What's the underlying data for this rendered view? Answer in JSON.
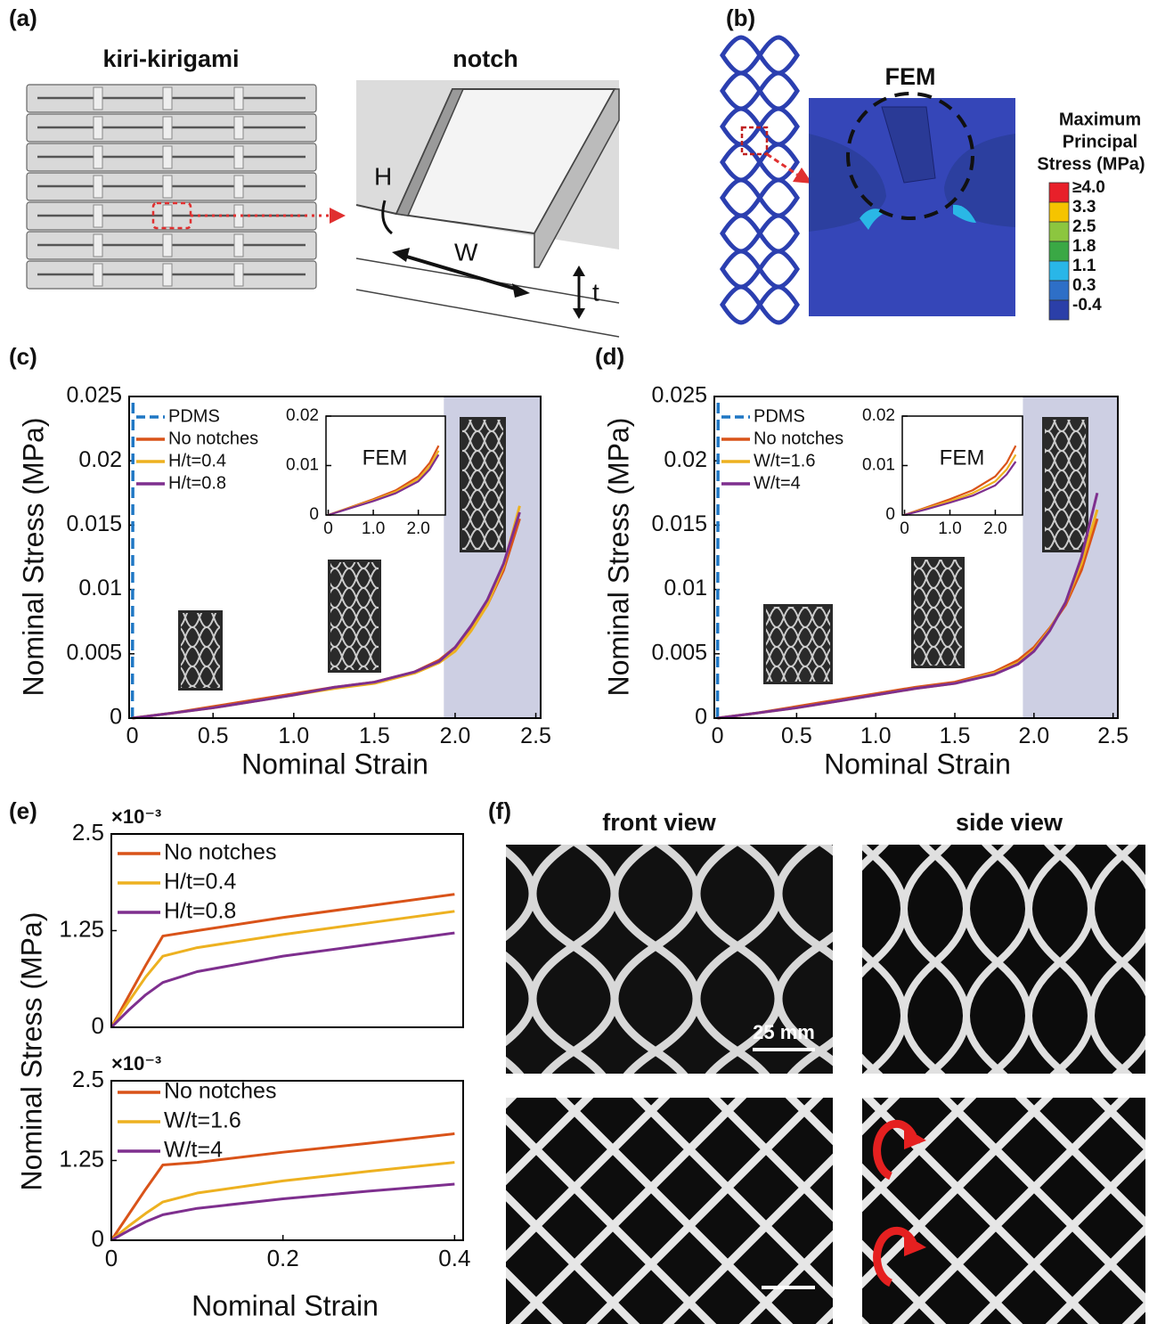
{
  "panels": [
    {
      "label": "(a)",
      "titles": [
        "kiri-kirigami",
        "notch"
      ],
      "dims": [
        "H",
        "W",
        "t"
      ]
    },
    {
      "label": "(b)",
      "callout": "FEM",
      "colorbar_title": [
        "Maximum",
        "Principal",
        "Stress (MPa)"
      ],
      "colorbar_labels": [
        "≥4.0",
        "3.3",
        "2.5",
        "1.8",
        "1.1",
        "0.3",
        "-0.4"
      ]
    },
    {
      "label": "(c)"
    },
    {
      "label": "(d)"
    },
    {
      "label": "(e)"
    },
    {
      "label": "(f)",
      "titles": [
        "front view",
        "side view"
      ],
      "scale_bar": "25 mm"
    }
  ],
  "chart_data": [
    {
      "type": "line",
      "xlabel": "Nominal Strain",
      "ylabel": "Nominal Stress (MPa)",
      "xlim": [
        -0.02,
        2.53
      ],
      "ylim": [
        0,
        0.025
      ],
      "xticks": [
        0,
        0.5,
        {
          "value": 1,
          "label": "1.0"
        },
        1.5,
        {
          "value": 2,
          "label": "2.0"
        },
        2.5
      ],
      "yticks": [
        0,
        0.005,
        0.01,
        0.015,
        0.02,
        0.025
      ],
      "highlight_x": [
        1.93,
        2.53
      ],
      "highlight_color": "#cdcfe3",
      "legend": "upper left",
      "x": [
        0,
        0.25,
        0.5,
        0.75,
        1,
        1.25,
        1.5,
        1.75,
        1.9,
        2,
        2.1,
        2.2,
        2.3,
        2.4
      ],
      "series": [
        {
          "name": "PDMS",
          "color": "#1f77c4",
          "dash": true,
          "x": [
            0,
            0.004
          ],
          "values": [
            0,
            0.025
          ]
        },
        {
          "name": "No notches",
          "color": "#d95319",
          "values": [
            0,
            0.0004,
            0.0009,
            0.0014,
            0.0019,
            0.0024,
            0.0028,
            0.0036,
            0.0045,
            0.0055,
            0.007,
            0.0088,
            0.0115,
            0.0155
          ]
        },
        {
          "name": "H/t=0.4",
          "color": "#edb120",
          "values": [
            0,
            0.0004,
            0.0008,
            0.0013,
            0.0018,
            0.0023,
            0.0027,
            0.0035,
            0.0043,
            0.0052,
            0.0068,
            0.0088,
            0.0118,
            0.0165
          ]
        },
        {
          "name": "H/t=0.8",
          "color": "#7e2f8e",
          "values": [
            0,
            0.0004,
            0.0008,
            0.0013,
            0.0018,
            0.0024,
            0.0028,
            0.0036,
            0.0044,
            0.0055,
            0.0072,
            0.0092,
            0.012,
            0.016
          ]
        }
      ]
    },
    {
      "type": "line",
      "xlabel": "Nominal Strain",
      "ylabel": "Nominal Stress (MPa)",
      "xlim": [
        -0.02,
        2.53
      ],
      "ylim": [
        0,
        0.025
      ],
      "xticks": [
        0,
        0.5,
        {
          "value": 1,
          "label": "1.0"
        },
        1.5,
        {
          "value": 2,
          "label": "2.0"
        },
        2.5
      ],
      "yticks": [
        0,
        0.005,
        0.01,
        0.015,
        0.02,
        0.025
      ],
      "highlight_x": [
        1.93,
        2.53
      ],
      "highlight_color": "#cdcfe3",
      "legend": "upper left",
      "x": [
        0,
        0.25,
        0.5,
        0.75,
        1,
        1.25,
        1.5,
        1.75,
        1.9,
        2,
        2.1,
        2.2,
        2.3,
        2.4
      ],
      "series": [
        {
          "name": "PDMS",
          "color": "#1f77c4",
          "dash": true,
          "x": [
            0,
            0.004
          ],
          "values": [
            0,
            0.025
          ]
        },
        {
          "name": "No notches",
          "color": "#d95319",
          "values": [
            0,
            0.0004,
            0.0009,
            0.0014,
            0.0019,
            0.0024,
            0.0028,
            0.0036,
            0.0045,
            0.0055,
            0.007,
            0.0088,
            0.0115,
            0.0155
          ]
        },
        {
          "name": "W/t=1.6",
          "color": "#edb120",
          "values": [
            0,
            0.0004,
            0.0008,
            0.0013,
            0.0018,
            0.0023,
            0.0027,
            0.0035,
            0.0043,
            0.0053,
            0.0069,
            0.009,
            0.012,
            0.0162
          ]
        },
        {
          "name": "W/t=4",
          "color": "#7e2f8e",
          "values": [
            0,
            0.0004,
            0.0008,
            0.0013,
            0.0018,
            0.0023,
            0.0027,
            0.0034,
            0.0042,
            0.0052,
            0.0068,
            0.009,
            0.0125,
            0.0175
          ]
        }
      ]
    },
    {
      "type": "line",
      "annotation": "FEM",
      "xlim": [
        -0.05,
        2.6
      ],
      "ylim": [
        0,
        0.02
      ],
      "xticks": [
        0,
        {
          "value": 1,
          "label": "1.0"
        },
        {
          "value": 2,
          "label": "2.0"
        }
      ],
      "yticks": [
        0,
        0.01,
        0.02
      ],
      "x": [
        0,
        0.5,
        1,
        1.5,
        2,
        2.25,
        2.45
      ],
      "series": [
        {
          "color": "#d95319",
          "values": [
            0,
            0.0016,
            0.0032,
            0.005,
            0.0078,
            0.0105,
            0.014
          ]
        },
        {
          "color": "#edb120",
          "values": [
            0,
            0.0015,
            0.003,
            0.0047,
            0.0073,
            0.0098,
            0.013
          ]
        },
        {
          "color": "#7e2f8e",
          "values": [
            0,
            0.0014,
            0.0028,
            0.0044,
            0.0068,
            0.0092,
            0.0122
          ]
        }
      ]
    },
    {
      "type": "line",
      "annotation": "FEM",
      "xlim": [
        -0.05,
        2.6
      ],
      "ylim": [
        0,
        0.02
      ],
      "xticks": [
        0,
        {
          "value": 1,
          "label": "1.0"
        },
        {
          "value": 2,
          "label": "2.0"
        }
      ],
      "yticks": [
        0,
        0.01,
        0.02
      ],
      "x": [
        0,
        0.5,
        1,
        1.5,
        2,
        2.25,
        2.45
      ],
      "series": [
        {
          "color": "#d95319",
          "values": [
            0,
            0.0016,
            0.0032,
            0.005,
            0.0078,
            0.0105,
            0.014
          ]
        },
        {
          "color": "#edb120",
          "values": [
            0,
            0.0014,
            0.0028,
            0.0044,
            0.0068,
            0.0092,
            0.0122
          ]
        },
        {
          "color": "#7e2f8e",
          "values": [
            0,
            0.0012,
            0.0025,
            0.0039,
            0.006,
            0.0082,
            0.0108
          ]
        }
      ]
    },
    {
      "type": "line",
      "ylabel": "Nominal Stress (MPa)",
      "y_multiplier": "×10⁻³",
      "xlim": [
        0,
        0.41
      ],
      "ylim": [
        0,
        2.5
      ],
      "yticks": [
        0,
        1.25,
        2.5
      ],
      "legend": "upper left",
      "x": [
        0,
        0.02,
        0.04,
        0.06,
        0.1,
        0.2,
        0.3,
        0.4
      ],
      "series": [
        {
          "name": "No notches",
          "color": "#d95319",
          "values": [
            0,
            0.4,
            0.8,
            1.18,
            1.25,
            1.42,
            1.57,
            1.72
          ]
        },
        {
          "name": "H/t=0.4",
          "color": "#edb120",
          "values": [
            0,
            0.33,
            0.65,
            0.92,
            1.03,
            1.2,
            1.35,
            1.5
          ]
        },
        {
          "name": "H/t=0.8",
          "color": "#7e2f8e",
          "values": [
            0,
            0.22,
            0.42,
            0.58,
            0.72,
            0.92,
            1.07,
            1.22
          ]
        }
      ]
    },
    {
      "type": "line",
      "xlabel": "Nominal Strain",
      "y_multiplier": "×10⁻³",
      "xlim": [
        0,
        0.41
      ],
      "ylim": [
        0,
        2.5
      ],
      "xticks": [
        0,
        0.2,
        0.4
      ],
      "yticks": [
        0,
        1.25,
        2.5
      ],
      "legend": "upper left",
      "x": [
        0,
        0.02,
        0.04,
        0.06,
        0.1,
        0.2,
        0.3,
        0.4
      ],
      "series": [
        {
          "name": "No notches",
          "color": "#d95319",
          "values": [
            0,
            0.4,
            0.8,
            1.18,
            1.22,
            1.38,
            1.52,
            1.67
          ]
        },
        {
          "name": "W/t=1.6",
          "color": "#edb120",
          "values": [
            0,
            0.22,
            0.42,
            0.6,
            0.74,
            0.93,
            1.08,
            1.22
          ]
        },
        {
          "name": "W/t=4",
          "color": "#7e2f8e",
          "values": [
            0,
            0.15,
            0.29,
            0.4,
            0.5,
            0.65,
            0.77,
            0.88
          ]
        }
      ]
    }
  ]
}
